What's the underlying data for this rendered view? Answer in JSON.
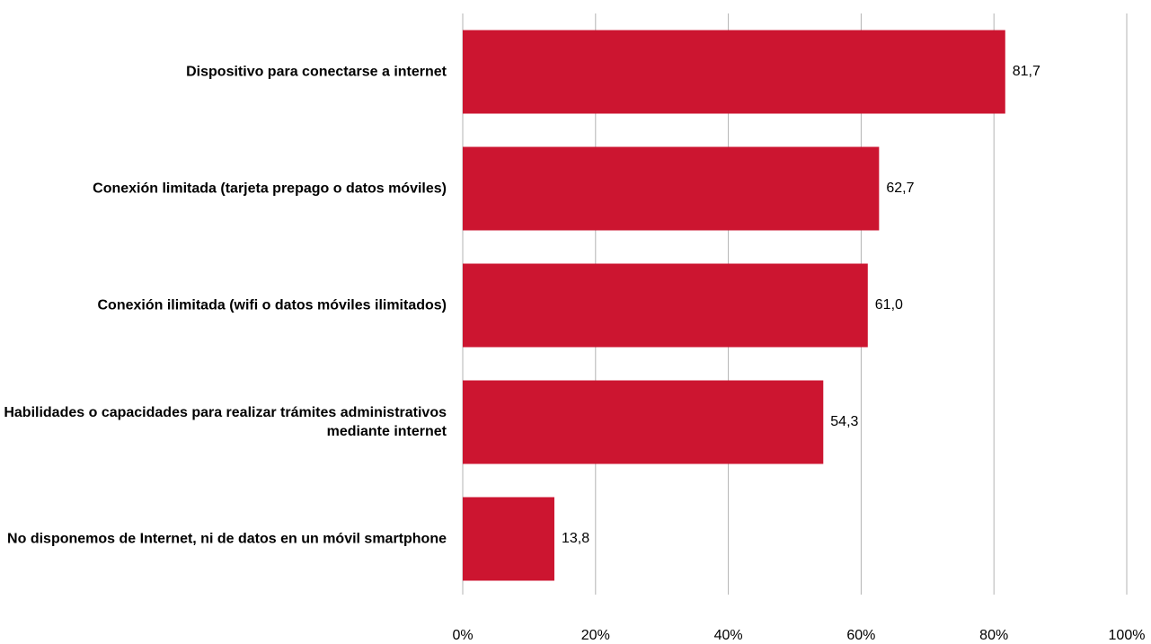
{
  "chart_data": {
    "type": "barh",
    "categories": [
      "Dispositivo para conectarse a internet",
      "Conexión limitada (tarjeta prepago o datos móviles)",
      "Conexión ilimitada (wifi o datos móviles ilimitados)",
      "Habilidades o capacidades para realizar trámites administrativos mediante internet",
      "No disponemos de Internet, ni de datos en un móvil smartphone"
    ],
    "values": [
      81.7,
      62.7,
      61.0,
      54.3,
      13.8
    ],
    "value_labels": [
      "81,7",
      "62,7",
      "61,0",
      "54,3",
      "13,8"
    ],
    "color": "#cc1530",
    "xlim": [
      0,
      100
    ],
    "xticks": [
      {
        "value": 0,
        "label": "0%"
      },
      {
        "value": 20,
        "label": "20%"
      },
      {
        "value": 40,
        "label": "40%"
      },
      {
        "value": 60,
        "label": "60%"
      },
      {
        "value": 80,
        "label": "80%"
      },
      {
        "value": 100,
        "label": "100%"
      }
    ],
    "grid": true
  }
}
